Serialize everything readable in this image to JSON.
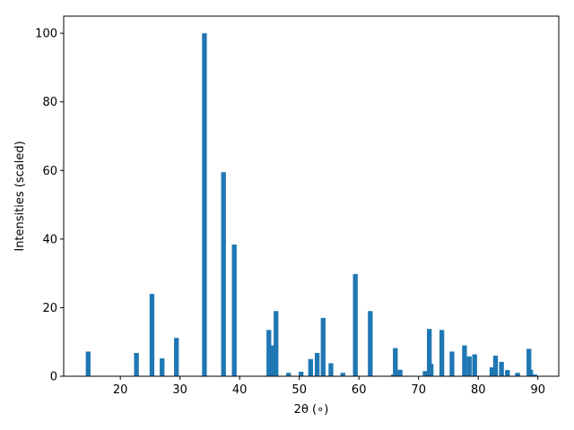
{
  "chart_data": {
    "type": "bar",
    "xlabel": "2θ (∘)",
    "ylabel": "Intensities (scaled)",
    "xlim": [
      10.5,
      93.5
    ],
    "ylim": [
      0,
      105
    ],
    "x_ticks": [
      20,
      30,
      40,
      50,
      60,
      70,
      80,
      90
    ],
    "y_ticks": [
      0,
      20,
      40,
      60,
      80,
      100
    ],
    "grid": false,
    "bar_color": "#1f77b4",
    "bar_width": 0.8,
    "series": [
      {
        "x": [
          14.6,
          22.7,
          25.3,
          27.0,
          29.4,
          34.1,
          37.3,
          39.1,
          44.9,
          45.5,
          46.1,
          48.2,
          50.3,
          51.9,
          53.0,
          54.0,
          55.3,
          57.3,
          59.4,
          61.9,
          65.8,
          66.1,
          66.9,
          71.1,
          71.8,
          72.1,
          73.9,
          75.6,
          77.7,
          78.5,
          79.4,
          82.3,
          82.9,
          83.9,
          84.9,
          86.6,
          88.5,
          88.8,
          89.5
        ],
        "values": [
          7.2,
          6.8,
          24.0,
          5.2,
          11.2,
          100.0,
          59.5,
          38.4,
          13.5,
          9.0,
          19.0,
          1.0,
          1.3,
          5.0,
          6.8,
          17.0,
          3.8,
          1.0,
          29.8,
          19.0,
          0.5,
          8.2,
          1.9,
          1.5,
          13.8,
          3.6,
          13.5,
          7.2,
          9.0,
          5.8,
          6.4,
          2.6,
          6.0,
          4.2,
          1.8,
          1.0,
          8.0,
          1.9,
          0.5
        ]
      }
    ]
  }
}
